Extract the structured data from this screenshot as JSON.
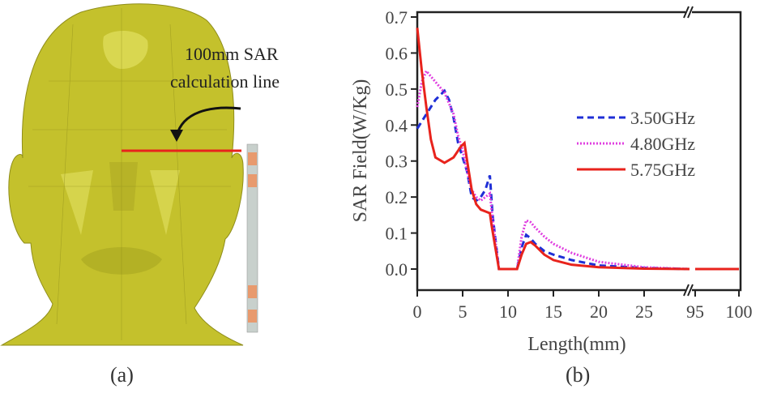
{
  "panel_a": {
    "annotation_line1": "100mm SAR",
    "annotation_line2": "calculation line",
    "caption": "(a)",
    "head_color": "#c4c12c",
    "line_color": "#e8231c"
  },
  "panel_b": {
    "caption": "(b)"
  },
  "chart_data": {
    "type": "line",
    "title": "",
    "xlabel": "Length(mm)",
    "ylabel": "SAR Field(W/Kg)",
    "ylim": [
      -0.06,
      0.714
    ],
    "xlim": [
      0,
      100
    ],
    "x_axis_break": [
      30,
      94.5
    ],
    "xticks": [
      "0",
      "5",
      "10",
      "15",
      "20",
      "25",
      "95",
      "100"
    ],
    "xtick_values": [
      0,
      5,
      10,
      15,
      20,
      25,
      95,
      100
    ],
    "yticks": [
      "0.0",
      "0.1",
      "0.2",
      "0.3",
      "0.4",
      "0.5",
      "0.6",
      "0.7"
    ],
    "ytick_values": [
      0,
      0.1,
      0.2,
      0.3,
      0.4,
      0.5,
      0.6,
      0.7
    ],
    "grid": false,
    "legend_position": "center-right",
    "series": [
      {
        "name": "3.50GHz",
        "color": "#1f2fd6",
        "style": "dashed",
        "x": [
          0,
          0.5,
          1,
          2,
          3,
          3.5,
          4,
          4.5,
          5,
          5.5,
          6,
          6.5,
          7,
          7.5,
          8,
          8.3,
          9,
          11,
          11.5,
          12,
          12.5,
          13,
          14,
          15,
          17,
          20,
          25,
          30,
          95,
          100
        ],
        "y": [
          0.39,
          0.41,
          0.43,
          0.47,
          0.495,
          0.47,
          0.42,
          0.35,
          0.31,
          0.27,
          0.2,
          0.19,
          0.2,
          0.22,
          0.26,
          0.15,
          0,
          0,
          0.06,
          0.095,
          0.085,
          0.07,
          0.05,
          0.04,
          0.025,
          0.01,
          0.003,
          0,
          0,
          0
        ]
      },
      {
        "name": "4.80GHz",
        "color": "#e040e0",
        "style": "dotted",
        "x": [
          0,
          0.5,
          1,
          2,
          3,
          4,
          4.5,
          5,
          5.5,
          6,
          6.5,
          7,
          7.5,
          8,
          8.3,
          9,
          11,
          11.5,
          12,
          12.5,
          13,
          14,
          15,
          17,
          20,
          25,
          30,
          95,
          100
        ],
        "y": [
          0.45,
          0.52,
          0.55,
          0.52,
          0.49,
          0.43,
          0.37,
          0.33,
          0.27,
          0.22,
          0.2,
          0.19,
          0.2,
          0.21,
          0.14,
          0,
          0,
          0.09,
          0.135,
          0.13,
          0.115,
          0.09,
          0.07,
          0.045,
          0.02,
          0.005,
          0,
          0,
          0
        ]
      },
      {
        "name": "5.75GHz",
        "color": "#e8231c",
        "style": "solid",
        "x": [
          0,
          0.5,
          1,
          1.5,
          2,
          3,
          4,
          4.8,
          5.2,
          5.5,
          6,
          6.5,
          7,
          7.5,
          8,
          8.2,
          9,
          11,
          11.5,
          12,
          12.5,
          13,
          14,
          15,
          17,
          20,
          25,
          30,
          95,
          100
        ],
        "y": [
          0.67,
          0.55,
          0.45,
          0.36,
          0.31,
          0.295,
          0.31,
          0.34,
          0.35,
          0.3,
          0.22,
          0.18,
          0.165,
          0.16,
          0.155,
          0.12,
          0,
          0,
          0.04,
          0.07,
          0.075,
          0.065,
          0.04,
          0.025,
          0.012,
          0.005,
          0.001,
          0,
          0,
          0
        ]
      }
    ]
  }
}
